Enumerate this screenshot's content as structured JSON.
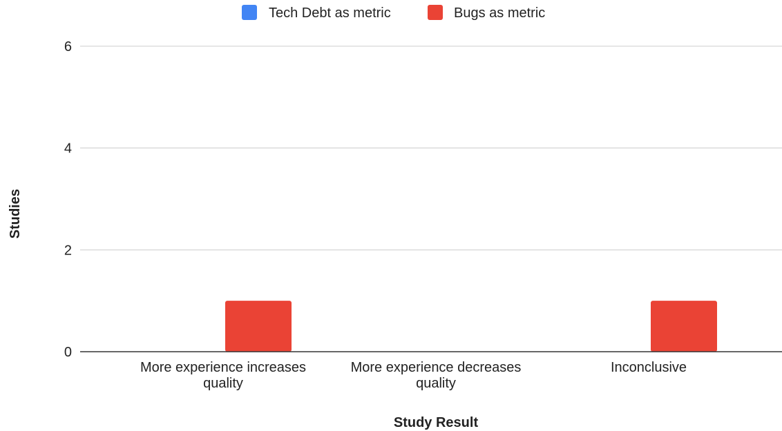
{
  "chart_data": {
    "type": "bar",
    "categories": [
      [
        "More experience increases",
        "quality"
      ],
      [
        "More experience decreases",
        "quality"
      ],
      [
        "Inconclusive"
      ]
    ],
    "series": [
      {
        "name": "Tech Debt as metric",
        "color": "#4285f4",
        "values": [
          0,
          0,
          0
        ]
      },
      {
        "name": "Bugs as metric",
        "color": "#ea4335",
        "values": [
          1,
          0,
          1
        ]
      }
    ],
    "xlabel": "Study Result",
    "ylabel": "Studies",
    "ylim": [
      0,
      6
    ],
    "yticks": [
      0,
      2,
      4,
      6
    ],
    "grid": true,
    "legend_position": "top"
  }
}
